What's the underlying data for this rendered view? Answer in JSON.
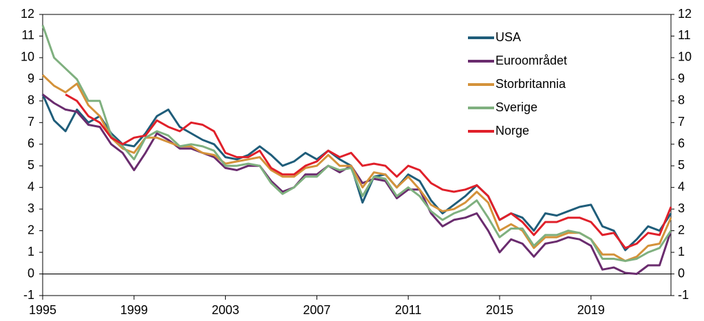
{
  "chart_data": {
    "type": "line",
    "x": [
      1995,
      1995.5,
      1996,
      1996.5,
      1997,
      1997.5,
      1998,
      1998.5,
      1999,
      1999.5,
      2000,
      2000.5,
      2001,
      2001.5,
      2002,
      2002.5,
      2003,
      2003.5,
      2004,
      2004.5,
      2005,
      2005.5,
      2006,
      2006.5,
      2007,
      2007.5,
      2008,
      2008.5,
      2009,
      2009.5,
      2010,
      2010.5,
      2011,
      2011.5,
      2012,
      2012.5,
      2013,
      2013.5,
      2014,
      2014.5,
      2015,
      2015.5,
      2016,
      2016.5,
      2017,
      2017.5,
      2018,
      2018.5,
      2019,
      2019.5,
      2020,
      2020.5,
      2021,
      2021.5,
      2022,
      2022.5
    ],
    "xlim": [
      1995,
      2022.5
    ],
    "xticks": [
      1995,
      1999,
      2003,
      2007,
      2011,
      2015,
      2019
    ],
    "ylim": [
      -1,
      12
    ],
    "yticks": [
      -1,
      0,
      1,
      2,
      3,
      4,
      5,
      6,
      7,
      8,
      9,
      10,
      11,
      12
    ],
    "legend": "upper right",
    "series": [
      {
        "name": "USA",
        "color": "#1f5d7a",
        "values": [
          8.3,
          7.1,
          6.6,
          7.6,
          7.0,
          7.3,
          6.5,
          6.0,
          5.9,
          6.5,
          7.3,
          7.6,
          6.8,
          6.5,
          6.2,
          6.0,
          5.4,
          5.3,
          5.5,
          5.9,
          5.5,
          5.0,
          5.2,
          5.6,
          5.3,
          5.7,
          5.3,
          5.0,
          3.3,
          4.5,
          4.6,
          4.0,
          4.6,
          4.3,
          3.4,
          2.8,
          3.2,
          3.6,
          4.1,
          3.6,
          2.5,
          2.8,
          2.6,
          2.0,
          2.8,
          2.7,
          2.9,
          3.1,
          3.2,
          2.2,
          2.0,
          1.1,
          1.6,
          2.2,
          2.0,
          2.8
        ]
      },
      {
        "name": "Euroområdet",
        "color": "#6a2c6e",
        "values": [
          8.3,
          7.9,
          7.6,
          7.5,
          6.9,
          6.8,
          6.0,
          5.6,
          4.8,
          5.6,
          6.5,
          6.2,
          5.8,
          5.8,
          5.6,
          5.4,
          4.9,
          4.8,
          5.0,
          5.0,
          4.3,
          3.8,
          4.0,
          4.6,
          4.6,
          5.0,
          4.7,
          5.0,
          4.2,
          4.4,
          4.3,
          3.5,
          3.9,
          3.9,
          2.8,
          2.2,
          2.5,
          2.6,
          2.8,
          2.0,
          1.0,
          1.6,
          1.4,
          0.8,
          1.4,
          1.5,
          1.7,
          1.6,
          1.3,
          0.2,
          0.3,
          0.05,
          0.0,
          0.4,
          0.4,
          2.0
        ]
      },
      {
        "name": "Storbritannia",
        "color": "#d4923a",
        "values": [
          9.2,
          8.7,
          8.4,
          8.8,
          7.8,
          7.3,
          6.3,
          5.8,
          5.6,
          6.3,
          6.3,
          6.1,
          5.9,
          5.9,
          5.6,
          5.5,
          5.1,
          5.2,
          5.3,
          5.4,
          4.8,
          4.5,
          4.5,
          4.9,
          5.0,
          5.5,
          5.0,
          5.0,
          4.0,
          4.7,
          4.6,
          4.0,
          4.5,
          3.9,
          3.2,
          2.9,
          3.0,
          3.3,
          3.8,
          3.3,
          2.0,
          2.3,
          2.0,
          1.2,
          1.7,
          1.7,
          1.9,
          1.9,
          1.6,
          0.9,
          0.9,
          0.6,
          0.8,
          1.3,
          1.4,
          2.6
        ]
      },
      {
        "name": "Sverige",
        "color": "#7fb07f",
        "values": [
          11.5,
          10.0,
          9.5,
          9.0,
          8.0,
          8.0,
          6.4,
          5.9,
          5.3,
          6.3,
          6.6,
          6.4,
          5.9,
          6.0,
          5.9,
          5.7,
          5.0,
          5.0,
          5.1,
          5.0,
          4.2,
          3.7,
          4.0,
          4.5,
          4.5,
          5.0,
          4.8,
          4.9,
          3.6,
          4.5,
          4.4,
          3.6,
          4.0,
          3.6,
          2.9,
          2.5,
          2.8,
          3.0,
          3.4,
          2.6,
          1.7,
          2.1,
          2.1,
          1.3,
          1.8,
          1.8,
          2.0,
          1.9,
          1.6,
          0.7,
          0.7,
          0.6,
          0.7,
          1.0,
          1.2,
          2.0
        ]
      },
      {
        "name": "Norge",
        "color": "#e0202a",
        "values": [
          null,
          null,
          8.3,
          8.0,
          7.3,
          7.0,
          6.3,
          6.0,
          6.3,
          6.4,
          7.1,
          6.8,
          6.6,
          7.0,
          6.9,
          6.6,
          5.6,
          5.4,
          5.4,
          5.7,
          4.9,
          4.6,
          4.6,
          5.0,
          5.2,
          5.7,
          5.4,
          5.6,
          5.0,
          5.1,
          5.0,
          4.5,
          5.0,
          4.8,
          4.2,
          3.9,
          3.8,
          3.9,
          4.1,
          3.6,
          2.5,
          2.8,
          2.4,
          1.8,
          2.4,
          2.4,
          2.6,
          2.6,
          2.4,
          1.8,
          1.9,
          1.2,
          1.4,
          1.9,
          1.8,
          3.1
        ]
      }
    ]
  }
}
